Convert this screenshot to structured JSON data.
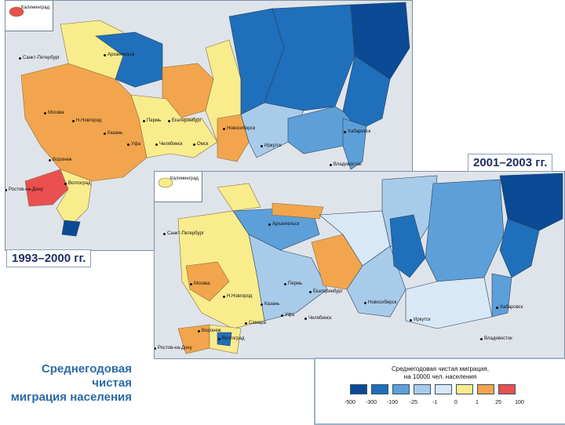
{
  "maps": [
    {
      "period": "1993–2000 гг.",
      "inset_label": "Калининград",
      "cities": [
        "Санкт-Петербург",
        "Архангельск",
        "Москва",
        "Н.Новгород",
        "Казань",
        "Пермь",
        "Екатеринбург",
        "Уфа",
        "Челябинск",
        "Омск",
        "Новосибирск",
        "Иркутск",
        "Хабаровск",
        "Владивосток",
        "Воронеж",
        "Ростов-на-Дону",
        "Волгоград"
      ]
    },
    {
      "period": "2001–2003 гг.",
      "inset_label": "Калининград",
      "cities": [
        "Санкт-Петербург",
        "Архангельск",
        "Москва",
        "Н.Новгород",
        "Казань",
        "Пермь",
        "Екатеринбург",
        "Уфа",
        "Челябинск",
        "Самара",
        "Новосибирск",
        "Иркутск",
        "Хабаровск",
        "Владивосток",
        "Воронеж",
        "Ростов-на-Дону",
        "Волгоград"
      ]
    }
  ],
  "title": {
    "line1": "Среднегодовая",
    "line2": "чистая",
    "line3": "миграция населения"
  },
  "legend": {
    "title_line1": "Среднегодовая чистая миграция,",
    "title_line2": "на 10000 чел. населения",
    "ticks": [
      "-500",
      "-300",
      "-100",
      "-25",
      "-1",
      "0",
      "1",
      "25",
      "100"
    ],
    "colors": [
      "#0b4a94",
      "#1f6fba",
      "#5d9fd8",
      "#a8cbe9",
      "#d8e8f6",
      "#f8ec8c",
      "#f2a54c",
      "#e9504f"
    ]
  },
  "palette": {
    "neg_strong": "#0b4a94",
    "neg_mid": "#1f6fba",
    "neg_light": "#5d9fd8",
    "neg_pale": "#a8cbe9",
    "neg_faint": "#d8e8f6",
    "pos_light": "#f8ec8c",
    "pos_mid": "#f2a54c",
    "pos_strong": "#e9504f",
    "water": "#dfe4ea"
  }
}
